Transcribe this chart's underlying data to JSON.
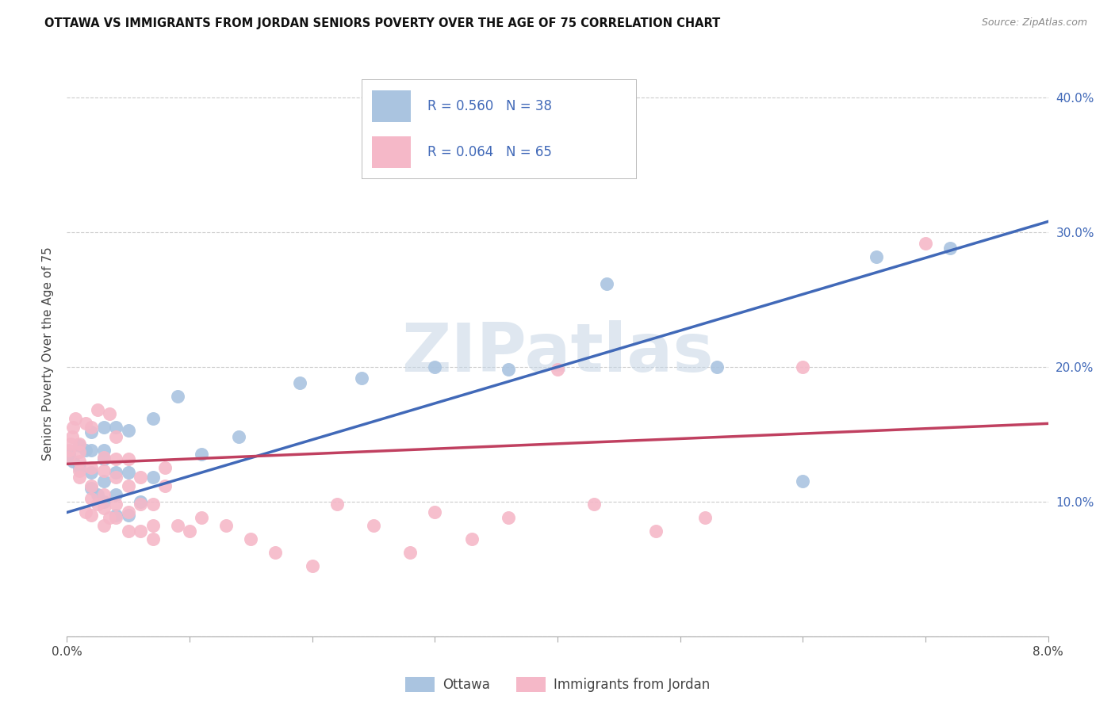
{
  "title": "OTTAWA VS IMMIGRANTS FROM JORDAN SENIORS POVERTY OVER THE AGE OF 75 CORRELATION CHART",
  "source": "Source: ZipAtlas.com",
  "ylabel": "Seniors Poverty Over the Age of 75",
  "x_min": 0.0,
  "x_max": 0.08,
  "y_min": 0.0,
  "y_max": 0.42,
  "ottawa_R": 0.56,
  "ottawa_N": 38,
  "jordan_R": 0.064,
  "jordan_N": 65,
  "ottawa_color": "#aac4e0",
  "jordan_color": "#f5b8c8",
  "ottawa_line_color": "#4169b8",
  "jordan_line_color": "#c04060",
  "background_color": "#ffffff",
  "grid_color": "#cccccc",
  "watermark": "ZIPatlas",
  "legend_label_ottawa": "Ottawa",
  "legend_label_jordan": "Immigrants from Jordan",
  "ottawa_points_x": [
    0.0002,
    0.0005,
    0.001,
    0.001,
    0.0015,
    0.002,
    0.002,
    0.002,
    0.002,
    0.0025,
    0.003,
    0.003,
    0.003,
    0.003,
    0.003,
    0.004,
    0.004,
    0.004,
    0.004,
    0.005,
    0.005,
    0.005,
    0.006,
    0.007,
    0.007,
    0.009,
    0.011,
    0.014,
    0.019,
    0.024,
    0.03,
    0.036,
    0.044,
    0.053,
    0.06,
    0.066,
    0.072
  ],
  "ottawa_points_y": [
    0.135,
    0.13,
    0.125,
    0.142,
    0.138,
    0.11,
    0.122,
    0.138,
    0.152,
    0.105,
    0.1,
    0.115,
    0.132,
    0.138,
    0.155,
    0.09,
    0.105,
    0.122,
    0.155,
    0.09,
    0.122,
    0.153,
    0.1,
    0.118,
    0.162,
    0.178,
    0.135,
    0.148,
    0.188,
    0.192,
    0.2,
    0.198,
    0.262,
    0.2,
    0.115,
    0.282,
    0.288
  ],
  "jordan_points_x": [
    0.0001,
    0.0002,
    0.0003,
    0.0004,
    0.0005,
    0.0007,
    0.001,
    0.001,
    0.001,
    0.001,
    0.001,
    0.0015,
    0.0015,
    0.002,
    0.002,
    0.002,
    0.002,
    0.002,
    0.0025,
    0.0025,
    0.003,
    0.003,
    0.003,
    0.003,
    0.003,
    0.0035,
    0.0035,
    0.004,
    0.004,
    0.004,
    0.004,
    0.004,
    0.005,
    0.005,
    0.005,
    0.005,
    0.006,
    0.006,
    0.006,
    0.007,
    0.007,
    0.007,
    0.008,
    0.008,
    0.009,
    0.01,
    0.011,
    0.013,
    0.015,
    0.017,
    0.02,
    0.022,
    0.025,
    0.028,
    0.03,
    0.033,
    0.036,
    0.04,
    0.043,
    0.048,
    0.052,
    0.06,
    0.07
  ],
  "jordan_points_y": [
    0.133,
    0.138,
    0.143,
    0.148,
    0.155,
    0.162,
    0.118,
    0.123,
    0.13,
    0.137,
    0.143,
    0.092,
    0.158,
    0.09,
    0.102,
    0.112,
    0.125,
    0.155,
    0.098,
    0.168,
    0.082,
    0.095,
    0.105,
    0.123,
    0.133,
    0.088,
    0.165,
    0.088,
    0.098,
    0.118,
    0.132,
    0.148,
    0.078,
    0.092,
    0.112,
    0.132,
    0.078,
    0.098,
    0.118,
    0.072,
    0.082,
    0.098,
    0.112,
    0.125,
    0.082,
    0.078,
    0.088,
    0.082,
    0.072,
    0.062,
    0.052,
    0.098,
    0.082,
    0.062,
    0.092,
    0.072,
    0.088,
    0.198,
    0.098,
    0.078,
    0.088,
    0.2,
    0.292
  ],
  "ottawa_line_x": [
    0.0,
    0.08
  ],
  "ottawa_line_y": [
    0.092,
    0.308
  ],
  "jordan_line_x": [
    0.0,
    0.08
  ],
  "jordan_line_y": [
    0.128,
    0.158
  ]
}
